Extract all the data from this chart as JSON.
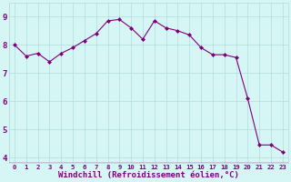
{
  "x": [
    0,
    1,
    2,
    3,
    4,
    5,
    6,
    7,
    8,
    9,
    10,
    11,
    12,
    13,
    14,
    15,
    16,
    17,
    18,
    19,
    20,
    21,
    22,
    23
  ],
  "y": [
    8.0,
    7.6,
    7.7,
    7.4,
    7.7,
    7.9,
    8.15,
    8.4,
    8.85,
    8.9,
    8.6,
    8.2,
    8.85,
    8.6,
    8.5,
    8.35,
    7.9,
    7.65,
    7.65,
    7.55,
    6.1,
    4.45,
    4.45,
    4.2
  ],
  "line_color": "#800080",
  "marker": "D",
  "marker_size": 2.0,
  "line_width": 0.8,
  "bg_color": "#d6f5f5",
  "grid_color": "#b0dede",
  "xlabel": "Windchill (Refroidissement éolien,°C)",
  "xlabel_color": "#800080",
  "xlabel_fontsize": 6.5,
  "tick_label_color": "#800080",
  "ytick_fontsize": 6.5,
  "xtick_fontsize": 5.2,
  "ylim": [
    3.8,
    9.5
  ],
  "yticks": [
    4,
    5,
    6,
    7,
    8,
    9
  ],
  "xlim": [
    -0.5,
    23.5
  ],
  "xticks": [
    0,
    1,
    2,
    3,
    4,
    5,
    6,
    7,
    8,
    9,
    10,
    11,
    12,
    13,
    14,
    15,
    16,
    17,
    18,
    19,
    20,
    21,
    22,
    23
  ]
}
